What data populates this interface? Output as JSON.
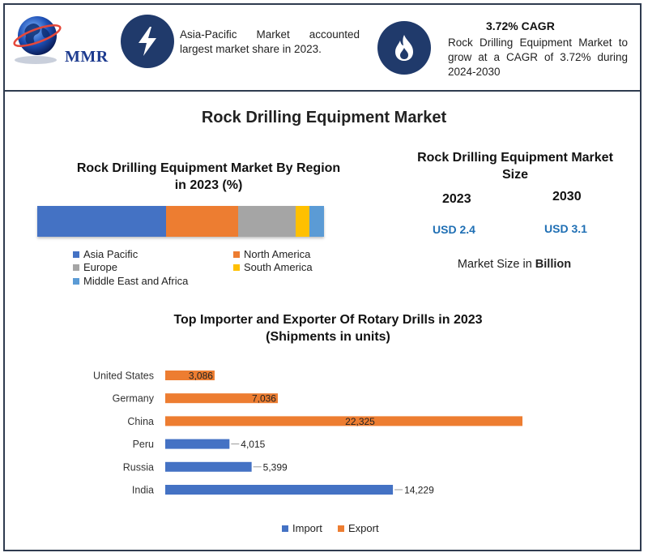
{
  "header": {
    "logo_text": "MMR",
    "highlight_1": {
      "icon": "lightning-bolt-icon",
      "text": "Asia-Pacific Market accounted largest market share in 2023."
    },
    "highlight_2": {
      "icon": "flame-icon",
      "title": "3.72% CAGR",
      "text": "Rock Drilling Equipment Market to grow at a CAGR of 3.72% during 2024-2030"
    }
  },
  "main_title": "Rock Drilling Equipment Market",
  "region": {
    "title_line1": "Rock Drilling Equipment Market By Region",
    "title_line2": "in 2023 (%)",
    "segments": [
      {
        "name": "Asia Pacific",
        "share": 45,
        "color": "#4472c4"
      },
      {
        "name": "North America",
        "share": 25,
        "color": "#ed7d31"
      },
      {
        "name": "Europe",
        "share": 20,
        "color": "#a5a5a5"
      },
      {
        "name": "South America",
        "share": 5,
        "color": "#ffc000"
      },
      {
        "name": "Middle East and Africa",
        "share": 5,
        "color": "#5b9bd5"
      }
    ]
  },
  "market_size": {
    "title_line1": "Rock Drilling Equipment Market",
    "title_line2": "Size",
    "year_1": "2023",
    "year_2": "2030",
    "value_1": "USD 2.4",
    "value_2": "USD 3.1",
    "note_prefix": "Market Size in ",
    "note_unit": "Billion"
  },
  "chart_data": {
    "type": "bar",
    "orientation": "horizontal",
    "title": "Top Importer and Exporter Of Rotary Drills in 2023",
    "subtitle": "(Shipments in units)",
    "categories": [
      "United States",
      "Germany",
      "China",
      "Peru",
      "Russia",
      "India"
    ],
    "series": [
      {
        "name": "Import",
        "color": "#4472c4",
        "values": [
          null,
          null,
          null,
          4015,
          5399,
          14229
        ],
        "labels": [
          "",
          "",
          "",
          "4,015",
          "5,399",
          "14,229"
        ]
      },
      {
        "name": "Export",
        "color": "#ed7d31",
        "values": [
          3086,
          7036,
          22325,
          null,
          null,
          null
        ],
        "labels": [
          "3,086",
          "7,036",
          "22,325",
          "",
          "",
          ""
        ]
      }
    ],
    "xlim": [
      0,
      22325
    ],
    "grid": false,
    "legend": "bottom"
  }
}
